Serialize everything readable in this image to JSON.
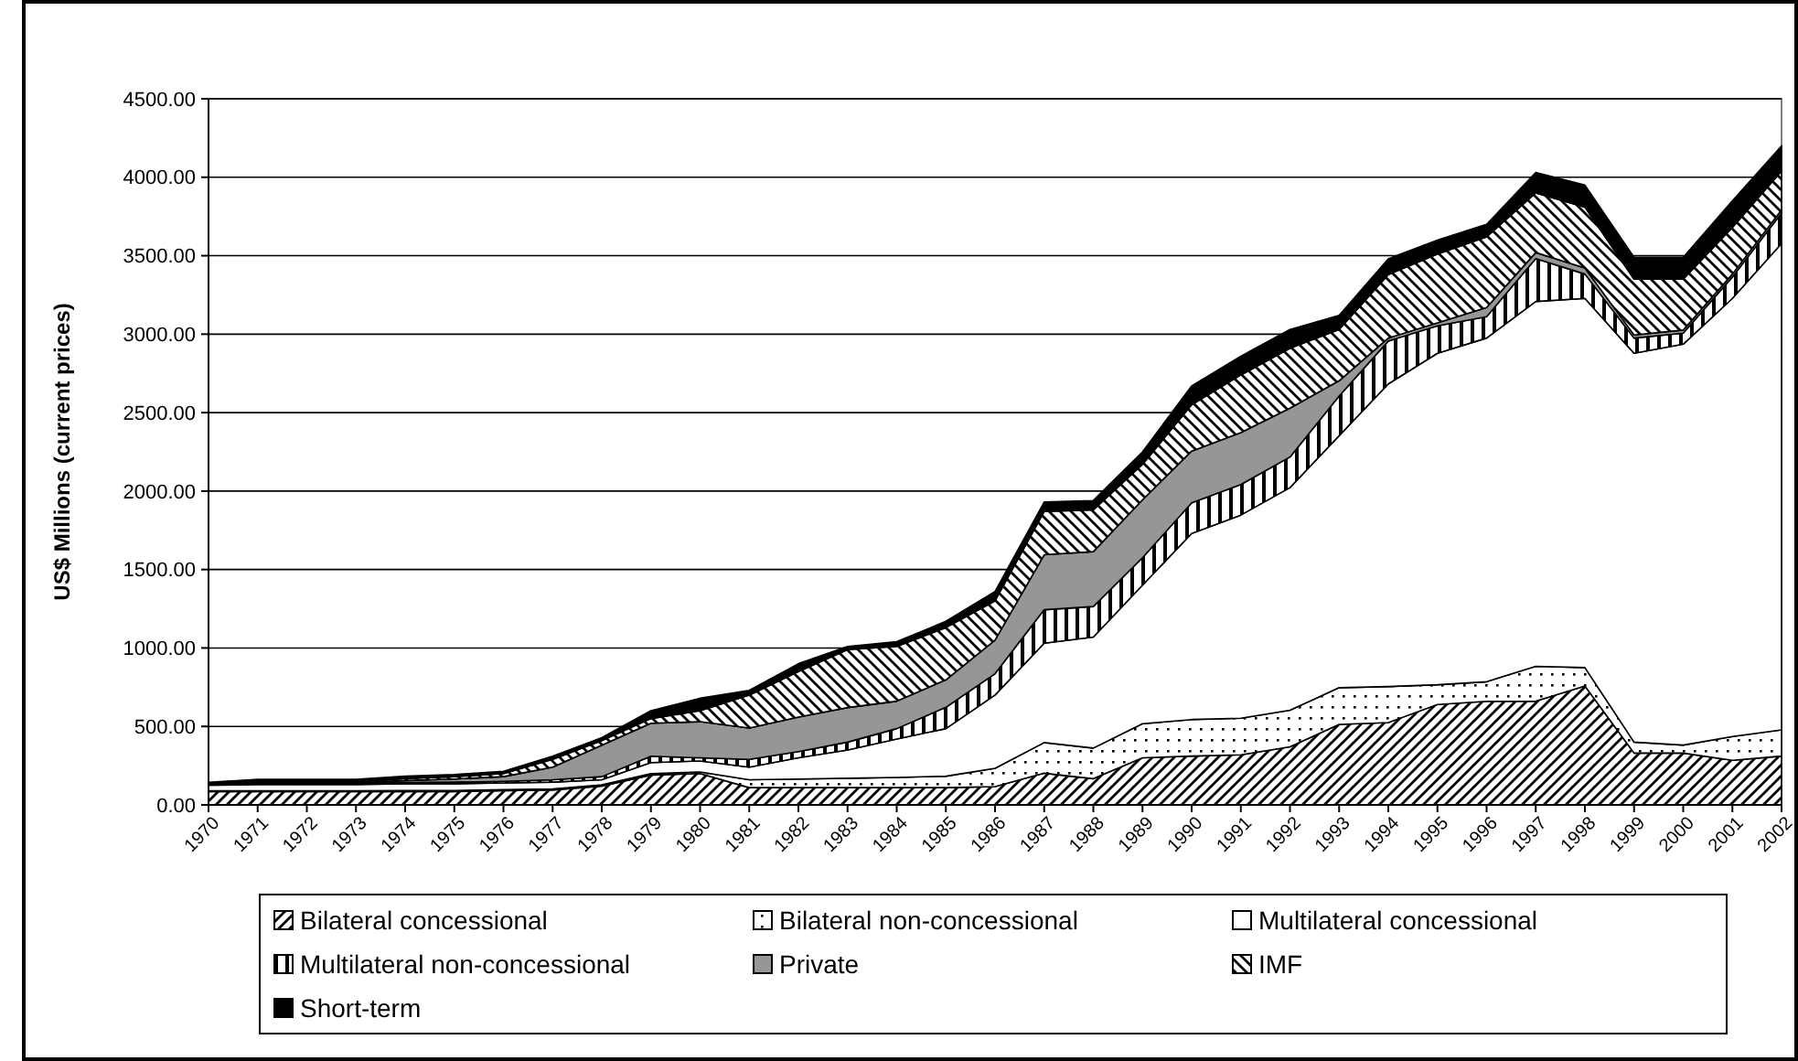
{
  "chart_data": {
    "type": "area",
    "stacked": true,
    "ylabel": "US$ Millions (current prices)",
    "categories": [
      "1970",
      "1971",
      "1972",
      "1973",
      "1974",
      "1975",
      "1976",
      "1977",
      "1978",
      "1979",
      "1980",
      "1981",
      "1982",
      "1983",
      "1984",
      "1985",
      "1986",
      "1987",
      "1988",
      "1989",
      "1990",
      "1991",
      "1992",
      "1993",
      "1994",
      "1995",
      "1996",
      "1997",
      "1998",
      "1999",
      "2000",
      "2001",
      "2002"
    ],
    "series": [
      {
        "name": "Bilateral concessional",
        "color": "#000000",
        "values": [
          85,
          85,
          85,
          85,
          85,
          85,
          90,
          95,
          120,
          190,
          200,
          110,
          110,
          110,
          110,
          110,
          117,
          202,
          167,
          300,
          311,
          319,
          370,
          513,
          525,
          640,
          660,
          661,
          758,
          330,
          330,
          284,
          311
        ]
      },
      {
        "name": "Bilateral non-concessional",
        "color": "#000000",
        "values": [
          5,
          5,
          5,
          5,
          7,
          7,
          7,
          7,
          8,
          10,
          10,
          50,
          55,
          60,
          65,
          73,
          116,
          195,
          195,
          217,
          233,
          233,
          233,
          234,
          229,
          126,
          125,
          222,
          117,
          70,
          51,
          152,
          167
        ]
      },
      {
        "name": "Multilateral concessional",
        "color": "#ffffff",
        "values": [
          35,
          40,
          40,
          40,
          43,
          43,
          43,
          43,
          32,
          70,
          70,
          80,
          135,
          180,
          245,
          303,
          467,
          633,
          708,
          883,
          1186,
          1295,
          1419,
          1606,
          1929,
          2112,
          2190,
          2325,
          2353,
          2478,
          2555,
          2792,
          3100
        ]
      },
      {
        "name": "Multilateral non-concessional",
        "color": "#000000",
        "values": [
          5,
          5,
          5,
          6,
          7,
          10,
          10,
          15,
          20,
          40,
          20,
          50,
          40,
          50,
          66,
          136,
          136,
          214,
          194,
          175,
          195,
          195,
          195,
          253,
          273,
          175,
          136,
          273,
          155,
          97,
          70,
          136,
          194
        ]
      },
      {
        "name": "Private",
        "color": "#969696",
        "values": [
          2,
          3,
          5,
          6,
          13,
          20,
          30,
          80,
          200,
          210,
          230,
          200,
          220,
          220,
          175,
          175,
          214,
          350,
          350,
          369,
          330,
          330,
          311,
          97,
          19,
          19,
          59,
          39,
          39,
          20,
          20,
          19,
          20
        ]
      },
      {
        "name": "IMF",
        "color": "#000000",
        "values": [
          3,
          7,
          5,
          6,
          13,
          15,
          20,
          50,
          30,
          30,
          70,
          210,
          290,
          370,
          349,
          333,
          250,
          276,
          266,
          226,
          295,
          368,
          382,
          327,
          405,
          438,
          450,
          380,
          388,
          355,
          324,
          297,
          248
        ]
      },
      {
        "name": "Short-term",
        "color": "#000000",
        "values": [
          9,
          18,
          18,
          15,
          15,
          14,
          14,
          21,
          18,
          50,
          80,
          30,
          50,
          20,
          30,
          40,
          60,
          60,
          60,
          80,
          120,
          120,
          120,
          90,
          100,
          90,
          80,
          130,
          140,
          140,
          140,
          170,
          160
        ]
      }
    ],
    "ylim": [
      0,
      4500
    ],
    "yticks": [
      {
        "value": 0,
        "label": "0.00"
      },
      {
        "value": 500,
        "label": "500.00"
      },
      {
        "value": 1000,
        "label": "1000.00"
      },
      {
        "value": 1500,
        "label": "1500.00"
      },
      {
        "value": 2000,
        "label": "2000.00"
      },
      {
        "value": 2500,
        "label": "2500.00"
      },
      {
        "value": 3000,
        "label": "3000.00"
      },
      {
        "value": 3500,
        "label": "3500.00"
      },
      {
        "value": 4000,
        "label": "4000.00"
      },
      {
        "value": 4500,
        "label": "4500.00"
      }
    ],
    "grid": "y",
    "legend": "bottom"
  }
}
